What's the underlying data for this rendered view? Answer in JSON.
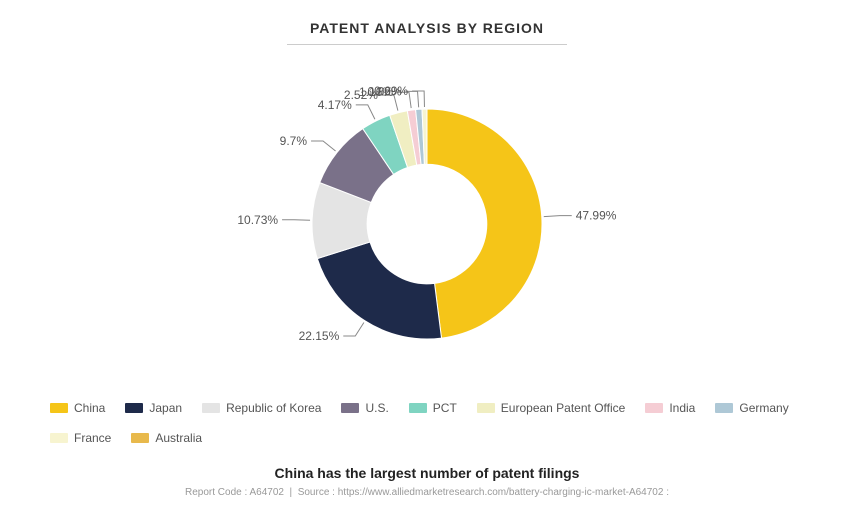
{
  "chart": {
    "type": "donut",
    "title": "PATENT ANALYSIS BY REGION",
    "inner_radius_ratio": 0.52,
    "outer_radius": 115,
    "background_color": "#ffffff",
    "slices": [
      {
        "label": "China",
        "value": 47.99,
        "color": "#f5c518"
      },
      {
        "label": "Japan",
        "value": 22.15,
        "color": "#1e2a4a"
      },
      {
        "label": "Republic of Korea",
        "value": 10.73,
        "color": "#e4e4e4"
      },
      {
        "label": "U.S.",
        "value": 9.7,
        "color": "#7a7189"
      },
      {
        "label": "PCT",
        "value": 4.17,
        "color": "#7fd4c1"
      },
      {
        "label": "European Patent Office",
        "value": 2.52,
        "color": "#f0eec2"
      },
      {
        "label": "India",
        "value": 1.16,
        "color": "#f5cdd4"
      },
      {
        "label": "Germany",
        "value": 0.89,
        "color": "#aec8d6"
      },
      {
        "label": "France",
        "value": 0.69,
        "color": "#f7f4d0"
      },
      {
        "label": "Australia",
        "value": 0.0,
        "color": "#e8b94c"
      }
    ],
    "label_fontsize": 12,
    "label_color": "#555555",
    "leader_line_color": "#888888"
  },
  "legend": {
    "fontsize": 12,
    "text_color": "#555555",
    "swatch_width": 18,
    "swatch_height": 10
  },
  "caption": "China has the largest number of patent filings",
  "footer": {
    "report_code_label": "Report Code :",
    "report_code": "A64702",
    "source_label": "Source :",
    "source_url": "https://www.alliedmarketresearch.com/battery-charging-ic-market-A64702 :"
  }
}
